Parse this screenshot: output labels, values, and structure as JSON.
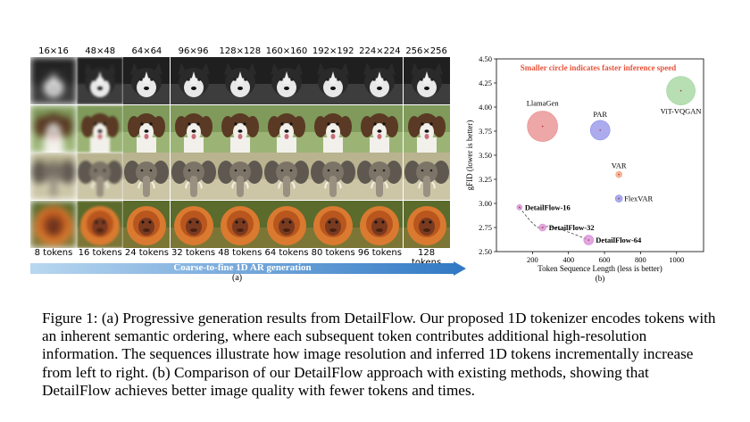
{
  "panel_a": {
    "resolutions": [
      "16×16",
      "48×48",
      "64×64",
      "96×96",
      "128×128",
      "160×160",
      "192×192",
      "224×224",
      "256×256"
    ],
    "tokens": [
      "8 tokens",
      "16 tokens",
      "24 tokens",
      "32 tokens",
      "48 tokens",
      "64 tokens",
      "80 tokens",
      "96 tokens",
      "128 tokens"
    ],
    "rows": [
      "husky",
      "puppy",
      "elephant",
      "orangutan"
    ],
    "arrow_label": "Coarse-to-fine 1D AR generation",
    "caption": "(a)"
  },
  "panel_b": {
    "caption": "(b)"
  },
  "chart_data": {
    "type": "scatter",
    "title": "",
    "annotation": "Smaller circle indicates faster inference speed",
    "xlabel": "Token Sequence Length (less is better)",
    "ylabel": "gFID (lower is better)",
    "xlim": [
      0,
      1150
    ],
    "ylim": [
      2.5,
      4.5
    ],
    "xticks": [
      200,
      400,
      600,
      800,
      1000
    ],
    "yticks": [
      2.5,
      2.75,
      3.0,
      3.25,
      3.5,
      3.75,
      4.0,
      4.25,
      4.5
    ],
    "points": [
      {
        "name": "LlamaGen",
        "x": 256,
        "y": 3.8,
        "color": "#e88a8a"
      },
      {
        "name": "PAR",
        "x": 576,
        "y": 3.76,
        "color": "#8f8fe8"
      },
      {
        "name": "ViT-VQGAN",
        "x": 1024,
        "y": 4.17,
        "color": "#9fd49a"
      },
      {
        "name": "VAR",
        "x": 680,
        "y": 3.3,
        "color": "#f2a07a"
      },
      {
        "name": "FlexVAR",
        "x": 680,
        "y": 3.05,
        "color": "#8f8fe8"
      },
      {
        "name": "DetailFlow-16",
        "x": 128,
        "y": 2.96,
        "color": "#d58ad5"
      },
      {
        "name": "DetailFlow-32",
        "x": 256,
        "y": 2.75,
        "color": "#d58ad5"
      },
      {
        "name": "DetailFlow-64",
        "x": 512,
        "y": 2.62,
        "color": "#d58ad5"
      }
    ]
  },
  "caption": "Figure 1: (a) Progressive generation results from DetailFlow. Our proposed 1D tokenizer encodes tokens with an inherent semantic ordering, where each subsequent token contributes additional high-resolution information. The sequences illustrate how image resolution and inferred 1D tokens incrementally increase from left to right. (b) Comparison of our DetailFlow approach with existing methods, showing that DetailFlow achieves better image quality with fewer tokens and times."
}
